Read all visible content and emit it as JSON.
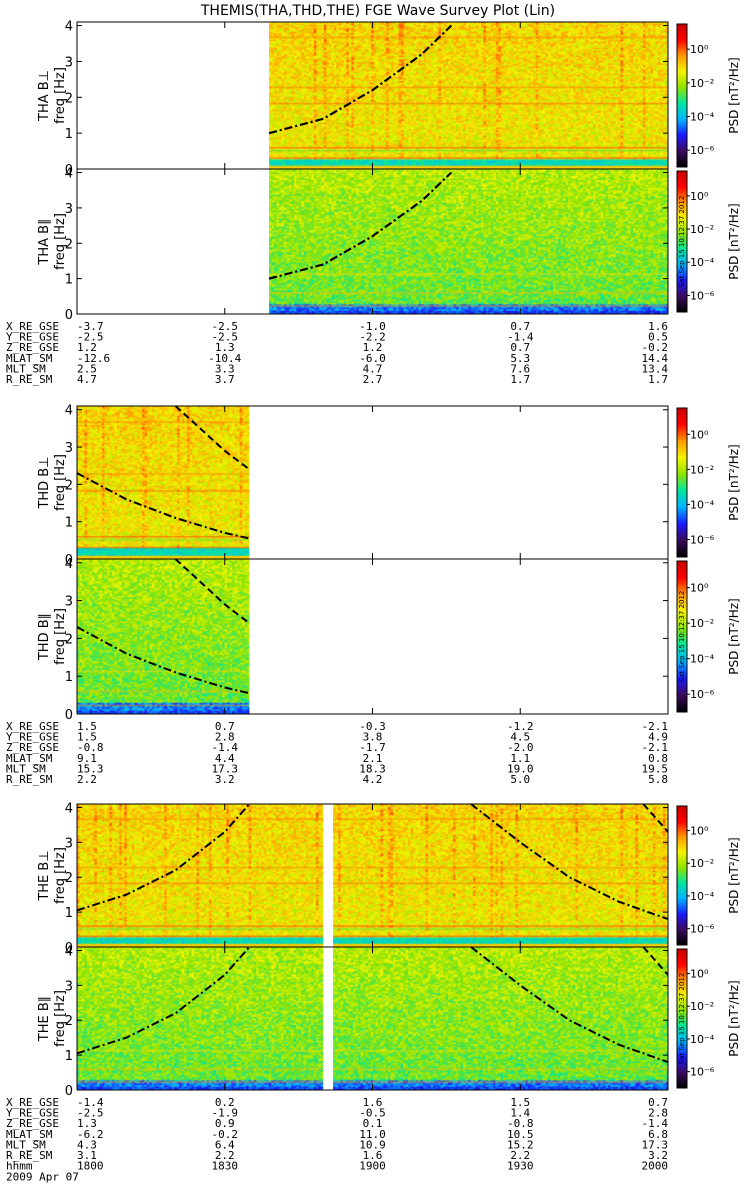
{
  "title": "THEMIS(THA,THD,THE) FGE Wave Survey Plot (Lin)",
  "stamp": "Sat Sep 15 10:12:37 2012",
  "colors": {
    "stops": [
      "#000000",
      "#3b0a5c",
      "#1a1aff",
      "#00b3ff",
      "#00e6a0",
      "#8fe300",
      "#f4f400",
      "#ff9900",
      "#ff0000",
      "#c80000"
    ]
  },
  "chart_data": {
    "type": "heatmap",
    "freq_axis": {
      "label": "freq [Hz]",
      "ylim": [
        0,
        4.1
      ],
      "ticks": [
        "0",
        "1",
        "2",
        "3",
        "4"
      ]
    },
    "colorbar": {
      "label": "PSD [nT²/Hz]",
      "ticks": [
        "10⁰",
        "10⁻²",
        "10⁻⁴",
        "10⁻⁶"
      ],
      "log_range": [
        -7,
        1.5
      ]
    },
    "time_axis": {
      "xlim": [
        "1800",
        "2000"
      ],
      "ticks": [
        "1800",
        "1830",
        "1900",
        "1930",
        "2000"
      ],
      "label": "hhmm",
      "date": "2009 Apr 07"
    },
    "probes": [
      {
        "panels": [
          {
            "ylabel": "THA B⊥",
            "variant": "perp"
          },
          {
            "ylabel": "THA B∥",
            "variant": "par"
          }
        ],
        "data_coverage": [
          [
            1839,
            2000
          ]
        ],
        "gyro_lines": [
          {
            "style": "dashdot",
            "points": [
              [
                1839,
                1.0
              ],
              [
                1850,
                1.4
              ],
              [
                1900,
                2.2
              ],
              [
                1910,
                3.2
              ],
              [
                1916,
                4.0
              ]
            ]
          },
          {
            "style": "dashdot",
            "points": [
              [
                1839,
                1.0
              ],
              [
                1850,
                1.4
              ],
              [
                1900,
                2.2
              ],
              [
                1910,
                3.2
              ],
              [
                1916,
                4.0
              ]
            ]
          }
        ],
        "ephemeris": [
          {
            "name": "X_RE_GSE",
            "values": [
              "-3.7",
              "-2.5",
              "-1.0",
              "0.7",
              "1.6"
            ]
          },
          {
            "name": "Y_RE_GSE",
            "values": [
              "-2.5",
              "-2.5",
              "-2.2",
              "-1.4",
              "0.5"
            ]
          },
          {
            "name": "Z_RE_GSE",
            "values": [
              "1.2",
              "1.3",
              "1.2",
              "0.7",
              "-0.2"
            ]
          },
          {
            "name": "MLAT_SM",
            "values": [
              "-12.6",
              "-10.4",
              "-6.0",
              "5.3",
              "14.4"
            ]
          },
          {
            "name": "MLT_SM",
            "values": [
              "2.5",
              "3.3",
              "4.7",
              "7.6",
              "13.4"
            ]
          },
          {
            "name": "R_RE_SM",
            "values": [
              "4.7",
              "3.7",
              "2.7",
              "1.7",
              "1.7"
            ]
          }
        ]
      },
      {
        "panels": [
          {
            "ylabel": "THD B⊥",
            "variant": "perp"
          },
          {
            "ylabel": "THD B∥",
            "variant": "par"
          }
        ],
        "data_coverage": [
          [
            1800,
            1835
          ]
        ],
        "gyro_lines": [
          {
            "style": "dashdot",
            "points": [
              [
                1800,
                2.3
              ],
              [
                1810,
                1.6
              ],
              [
                1820,
                1.1
              ],
              [
                1830,
                0.7
              ],
              [
                1835,
                0.55
              ]
            ]
          },
          {
            "style": "dashed",
            "points": [
              [
                1820,
                4.1
              ],
              [
                1825,
                3.5
              ],
              [
                1830,
                2.9
              ],
              [
                1835,
                2.4
              ]
            ]
          }
        ],
        "ephemeris": [
          {
            "name": "X_RE_GSE",
            "values": [
              "1.5",
              "0.7",
              "-0.3",
              "-1.2",
              "-2.1"
            ]
          },
          {
            "name": "Y_RE_GSE",
            "values": [
              "1.5",
              "2.8",
              "3.8",
              "4.5",
              "4.9"
            ]
          },
          {
            "name": "Z_RE_GSE",
            "values": [
              "-0.8",
              "-1.4",
              "-1.7",
              "-2.0",
              "-2.1"
            ]
          },
          {
            "name": "MLAT_SM",
            "values": [
              "9.1",
              "4.4",
              "2.1",
              "1.1",
              "0.8"
            ]
          },
          {
            "name": "MLT_SM",
            "values": [
              "15.3",
              "17.3",
              "18.3",
              "19.0",
              "19.5"
            ]
          },
          {
            "name": "R_RE_SM",
            "values": [
              "2.2",
              "3.2",
              "4.2",
              "5.0",
              "5.8"
            ]
          }
        ]
      },
      {
        "panels": [
          {
            "ylabel": "THE B⊥",
            "variant": "perp"
          },
          {
            "ylabel": "THE B∥",
            "variant": "par"
          }
        ],
        "data_coverage": [
          [
            1800,
            1850
          ],
          [
            1852,
            2000
          ]
        ],
        "gyro_lines": [
          {
            "style": "dashdot",
            "points": [
              [
                1800,
                1.05
              ],
              [
                1810,
                1.5
              ],
              [
                1820,
                2.2
              ],
              [
                1830,
                3.3
              ],
              [
                1835,
                4.1
              ]
            ]
          },
          {
            "style": "dashdot",
            "points": [
              [
                1920,
                4.1
              ],
              [
                1930,
                3.0
              ],
              [
                1940,
                2.0
              ],
              [
                1950,
                1.3
              ],
              [
                2000,
                0.8
              ]
            ]
          },
          {
            "style": "dashed",
            "points": [
              [
                1955,
                4.1
              ],
              [
                2000,
                3.3
              ]
            ]
          }
        ],
        "ephemeris": [
          {
            "name": "X_RE_GSE",
            "values": [
              "-1.4",
              "0.2",
              "1.6",
              "1.5",
              "0.7"
            ]
          },
          {
            "name": "Y_RE_GSE",
            "values": [
              "-2.5",
              "-1.9",
              "-0.5",
              "1.4",
              "2.8"
            ]
          },
          {
            "name": "Z_RE_GSE",
            "values": [
              "1.3",
              "0.9",
              "0.1",
              "-0.8",
              "-1.4"
            ]
          },
          {
            "name": "MLAT_SM",
            "values": [
              "-6.2",
              "-0.2",
              "11.0",
              "10.5",
              "6.8"
            ]
          },
          {
            "name": "MLT_SM",
            "values": [
              "4.3",
              "6.4",
              "10.9",
              "15.2",
              "17.3"
            ]
          },
          {
            "name": "R_RE_SM",
            "values": [
              "3.1",
              "2.2",
              "1.6",
              "2.2",
              "3.2"
            ]
          }
        ]
      }
    ]
  }
}
